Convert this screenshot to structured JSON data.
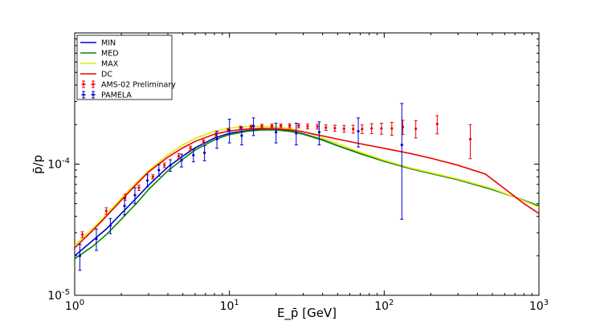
{
  "chart_data": {
    "type": "line",
    "title": "",
    "xlabel": "E_p̄ [GeV]",
    "ylabel": "p̄/p",
    "xscale": "log",
    "yscale": "log",
    "xlim": [
      1,
      1000
    ],
    "ylim": [
      1e-05,
      0.001
    ],
    "grid": false,
    "legend_position": "top-left",
    "x_tick_labels": [
      {
        "value": 1,
        "base": "10",
        "exp": "0"
      },
      {
        "value": 10,
        "base": "10",
        "exp": "1"
      },
      {
        "value": 100,
        "base": "10",
        "exp": "2"
      },
      {
        "value": 1000,
        "base": "10",
        "exp": "3"
      }
    ],
    "y_tick_labels": [
      {
        "value": 1e-05,
        "base": "10",
        "exp": "-5"
      },
      {
        "value": 0.0001,
        "base": "10",
        "exp": "-4"
      }
    ],
    "series": [
      {
        "name": "MIN",
        "color": "#0000cc",
        "x": [
          1,
          1.3,
          1.6,
          2,
          2.5,
          3,
          4,
          5,
          6,
          8,
          10,
          13,
          16,
          20,
          25,
          30,
          40,
          50,
          70,
          100,
          150,
          200,
          300,
          500,
          700,
          1000
        ],
        "y": [
          2e-05,
          2.6e-05,
          3.2e-05,
          4.2e-05,
          5.5e-05,
          6.9e-05,
          9.5e-05,
          0.000115,
          0.000133,
          0.000158,
          0.000172,
          0.00018,
          0.000184,
          0.000183,
          0.000178,
          0.00017,
          0.000153,
          0.000138,
          0.00012,
          0.000105,
          9.2e-05,
          8.5e-05,
          7.6e-05,
          6.4e-05,
          5.6e-05,
          4.8e-05
        ]
      },
      {
        "name": "MED",
        "color": "#008800",
        "x": [
          1,
          1.3,
          1.6,
          2,
          2.5,
          3,
          4,
          5,
          6,
          8,
          10,
          13,
          16,
          20,
          25,
          30,
          40,
          50,
          70,
          100,
          150,
          200,
          300,
          500,
          700,
          1000
        ],
        "y": [
          1.9e-05,
          2.35e-05,
          2.9e-05,
          3.8e-05,
          5e-05,
          6.4e-05,
          8.9e-05,
          0.000109,
          0.000128,
          0.000153,
          0.000168,
          0.000178,
          0.000182,
          0.000182,
          0.000177,
          0.000169,
          0.000152,
          0.000138,
          0.00012,
          0.000105,
          9.2e-05,
          8.5e-05,
          7.6e-05,
          6.4e-05,
          5.6e-05,
          4.8e-05
        ]
      },
      {
        "name": "MAX",
        "color": "#e6e600",
        "x": [
          1,
          1.3,
          1.6,
          2,
          2.5,
          3,
          4,
          5,
          6,
          8,
          10,
          13,
          16,
          20,
          25,
          30,
          40,
          50,
          70,
          100,
          150,
          200,
          300,
          500,
          700,
          1000
        ],
        "y": [
          2.4e-05,
          3.2e-05,
          4.1e-05,
          5.5e-05,
          7.2e-05,
          8.9e-05,
          0.000118,
          0.00014,
          0.000157,
          0.000178,
          0.000188,
          0.000193,
          0.000194,
          0.000192,
          0.000186,
          0.000177,
          0.000158,
          0.000143,
          0.000123,
          0.000107,
          9.3e-05,
          8.6e-05,
          7.7e-05,
          6.5e-05,
          5.6e-05,
          4.7e-05
        ]
      },
      {
        "name": "DC",
        "color": "#ee0000",
        "x": [
          1,
          1.3,
          1.6,
          2,
          2.5,
          3,
          4,
          5,
          6,
          8,
          10,
          13,
          16,
          20,
          25,
          30,
          40,
          50,
          70,
          100,
          150,
          200,
          300,
          450,
          600,
          800,
          1000
        ],
        "y": [
          2.3e-05,
          3.1e-05,
          4e-05,
          5.3e-05,
          7e-05,
          8.7e-05,
          0.000113,
          0.000133,
          0.000149,
          0.000169,
          0.000179,
          0.000185,
          0.000187,
          0.000186,
          0.000182,
          0.000176,
          0.000164,
          0.000155,
          0.000143,
          0.000132,
          0.00012,
          0.000111,
          9.8e-05,
          8.4e-05,
          6.5e-05,
          5e-05,
          4.2e-05
        ]
      }
    ],
    "errorbar_series": [
      {
        "name": "AMS-02 Preliminary",
        "color": "#ee0000",
        "x": [
          1.12,
          1.6,
          2.12,
          2.6,
          3.2,
          3.8,
          4.7,
          5.6,
          6.8,
          8.2,
          9.8,
          11.8,
          13.8,
          16.2,
          18.8,
          21.5,
          24.5,
          28,
          32,
          37,
          42,
          48,
          55,
          63,
          72,
          83,
          96,
          112,
          132,
          160,
          220,
          360
        ],
        "y": [
          2.9e-05,
          4.4e-05,
          5.6e-05,
          6.6e-05,
          8e-05,
          9.8e-05,
          0.000115,
          0.000132,
          0.000148,
          0.000168,
          0.000182,
          0.00019,
          0.000193,
          0.000195,
          0.000196,
          0.000196,
          0.000196,
          0.000196,
          0.000194,
          0.000193,
          0.00019,
          0.000188,
          0.000186,
          0.000185,
          0.000185,
          0.000187,
          0.000187,
          0.000187,
          0.000192,
          0.000186,
          0.000202,
          0.000155
        ],
        "ylow": [
          2.75e-05,
          4.15e-05,
          5.3e-05,
          6.3e-05,
          7.7e-05,
          9.4e-05,
          0.00011,
          0.000127,
          0.000143,
          0.000163,
          0.000177,
          0.000185,
          0.000188,
          0.000189,
          0.00019,
          0.00019,
          0.000189,
          0.000189,
          0.000186,
          0.000185,
          0.000181,
          0.000178,
          0.000175,
          0.000172,
          0.000171,
          0.000171,
          0.000169,
          0.000166,
          0.000168,
          0.000158,
          0.00017,
          0.00011
        ],
        "yhigh": [
          3.05e-05,
          4.65e-05,
          5.9e-05,
          6.9e-05,
          8.3e-05,
          0.000102,
          0.00012,
          0.000137,
          0.000153,
          0.000173,
          0.000187,
          0.000195,
          0.000198,
          0.000201,
          0.000202,
          0.000202,
          0.000203,
          0.000203,
          0.000202,
          0.000201,
          0.000199,
          0.000198,
          0.000197,
          0.000198,
          0.000199,
          0.000203,
          0.000205,
          0.000208,
          0.000216,
          0.000214,
          0.000234,
          0.0002
        ]
      },
      {
        "name": "PAMELA",
        "color": "#0000cc",
        "x": [
          1.08,
          1.38,
          1.7,
          2.1,
          2.45,
          2.95,
          3.5,
          4.15,
          4.9,
          5.85,
          6.9,
          8.3,
          10,
          12,
          14.3,
          20,
          27,
          38,
          68,
          130
        ],
        "y": [
          2e-05,
          2.7e-05,
          3.4e-05,
          4.8e-05,
          5.8e-05,
          7.5e-05,
          9e-05,
          9.8e-05,
          0.000107,
          0.000117,
          0.000122,
          0.000155,
          0.00018,
          0.000165,
          0.000195,
          0.000175,
          0.000172,
          0.000175,
          0.000178,
          0.00014
        ],
        "ylow": [
          1.55e-05,
          2.2e-05,
          2.95e-05,
          4.1e-05,
          5e-05,
          6.7e-05,
          8.1e-05,
          8.8e-05,
          9.5e-05,
          0.000104,
          0.000106,
          0.000132,
          0.000145,
          0.00014,
          0.000165,
          0.000145,
          0.00014,
          0.00014,
          0.000135,
          3.8e-05
        ],
        "yhigh": [
          2.45e-05,
          3.2e-05,
          3.85e-05,
          5.5e-05,
          6.6e-05,
          8.3e-05,
          9.9e-05,
          0.000108,
          0.000119,
          0.00013,
          0.000138,
          0.000178,
          0.00022,
          0.00019,
          0.000225,
          0.000205,
          0.000205,
          0.00021,
          0.000225,
          0.00029
        ]
      }
    ]
  }
}
